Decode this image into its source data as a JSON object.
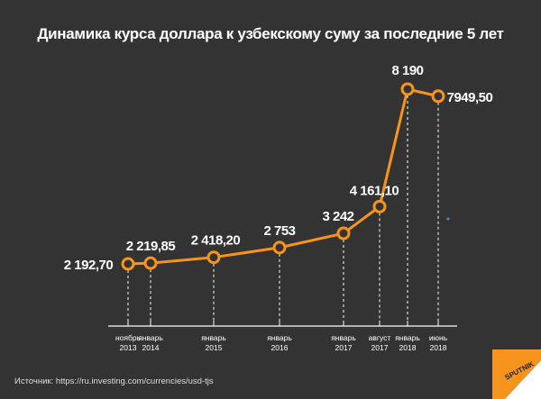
{
  "title": "Динамика курса доллара к узбекскому суму за последние 5 лет",
  "source": "Источник: https://ru.investing.com/currencies/usd-tjs",
  "logo_text": "SPUTNIK",
  "colors": {
    "background": "#333333",
    "line": "#f7941d",
    "highlight": "#e8452c",
    "text": "#ffffff"
  },
  "chart_data": {
    "type": "line",
    "title": "Динамика курса доллара к узбекскому суму за последние 5 лет",
    "categories": [
      [
        "ноябрь",
        "2013"
      ],
      [
        "январь",
        "2014"
      ],
      [
        "январь",
        "2015"
      ],
      [
        "январь",
        "2016"
      ],
      [
        "январь",
        "2017"
      ],
      [
        "август",
        "2017"
      ],
      [
        "январь",
        "2018"
      ],
      [
        "июнь",
        "2018"
      ]
    ],
    "values": [
      2192.7,
      2219.85,
      2418.2,
      2753,
      3242,
      4161.1,
      8190,
      7949.5
    ],
    "labels": [
      "2 192,70",
      "2 219,85",
      "2 418,20",
      "2 753",
      "3 242",
      "4 161,10",
      "8 190",
      "7949,50"
    ],
    "highlight_index": 6,
    "grid": false
  }
}
